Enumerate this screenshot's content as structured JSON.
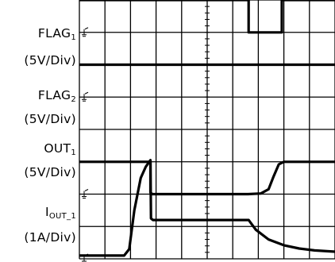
{
  "chart_data": {
    "type": "line",
    "title": "",
    "xlabel": "",
    "ylabel": "",
    "grid": true,
    "x_divisions": 10,
    "y_divisions": 8,
    "x_range": [
      0,
      10
    ],
    "channels": [
      {
        "name": "FLAG",
        "sub": "1",
        "scale": "(5V/Div)",
        "ground_div": 0.0
      },
      {
        "name": "FLAG",
        "sub": "2",
        "scale": "(5V/Div)",
        "ground_div": 0.0
      },
      {
        "name": "OUT",
        "sub": "1",
        "scale": "(5V/Div)",
        "ground_div": 0.0
      },
      {
        "name": "I",
        "sub": "OUT_1",
        "scale": "(1A/Div)",
        "ground_div": 0.0
      }
    ],
    "series": [
      {
        "name": "FLAG1",
        "x": [
          0,
          6.62,
          6.62,
          7.92,
          7.92,
          10
        ],
        "y": [
          1.0,
          1.0,
          0.0,
          0.0,
          1.0,
          1.0
        ],
        "offset_div": 7.0
      },
      {
        "name": "FLAG2",
        "x": [
          0,
          10
        ],
        "y": [
          1.0,
          1.0
        ],
        "offset_div": 5.0
      },
      {
        "name": "OUT1",
        "x": [
          0,
          2.78,
          2.78,
          2.85,
          6.6,
          7.1,
          7.4,
          7.6,
          7.8,
          8.0,
          10
        ],
        "y": [
          1.0,
          1.0,
          0.05,
          0.0,
          0.0,
          0.02,
          0.15,
          0.55,
          0.92,
          1.0,
          1.0
        ],
        "offset_div": 2.0
      },
      {
        "name": "IOUT_1",
        "x": [
          0,
          1.75,
          1.95,
          2.15,
          2.4,
          2.6,
          2.78,
          2.8,
          2.88,
          6.62,
          6.9,
          7.4,
          8.0,
          8.6,
          9.2,
          10
        ],
        "y": [
          0.1,
          0.1,
          0.3,
          1.5,
          2.5,
          2.85,
          3.05,
          1.25,
          1.2,
          1.2,
          0.9,
          0.6,
          0.42,
          0.32,
          0.26,
          0.22
        ],
        "offset_div": 0.0
      }
    ]
  }
}
